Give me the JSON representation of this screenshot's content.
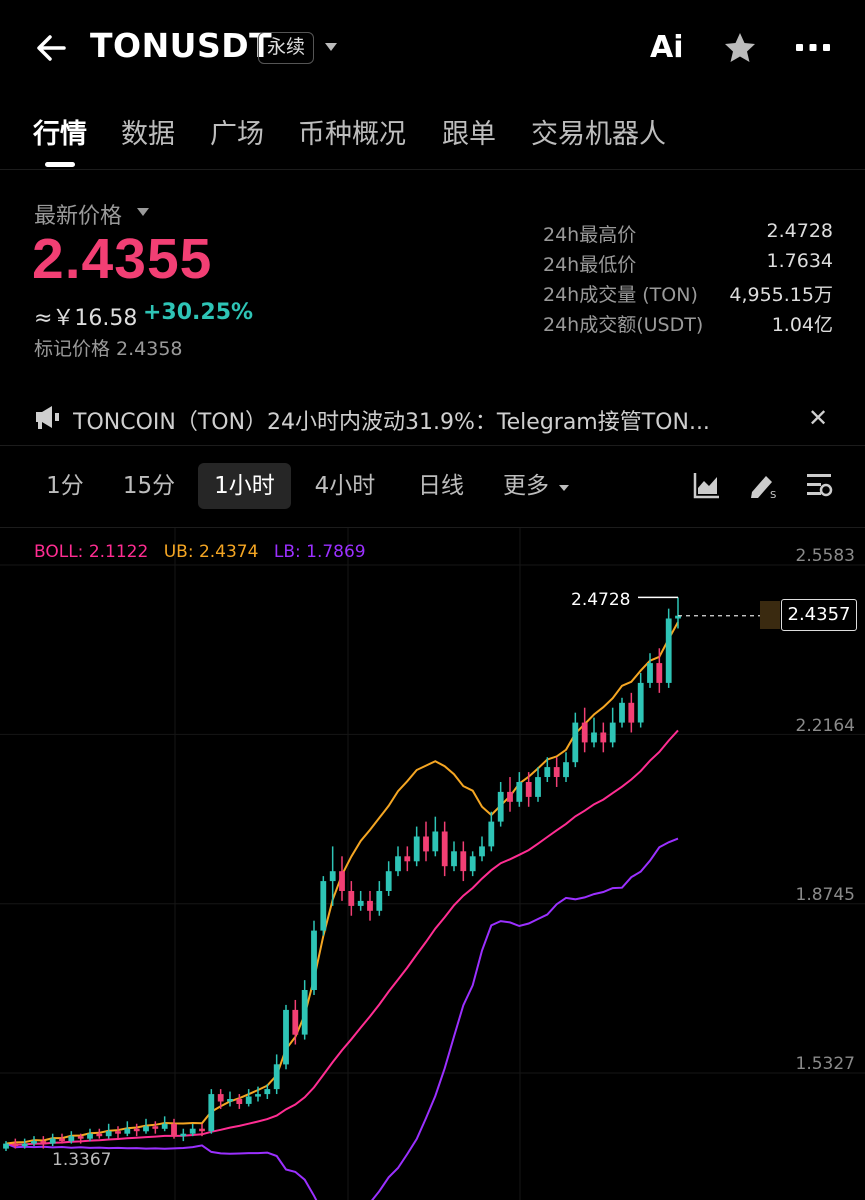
{
  "header": {
    "title": "TONUSDT",
    "badge": "永续",
    "ai_label": "Ai"
  },
  "tabs": [
    "行情",
    "数据",
    "广场",
    "币种概况",
    "跟单",
    "交易机器人"
  ],
  "price": {
    "label": "最新价格",
    "last": "2.4355",
    "cny": "≈￥16.58",
    "change": "+30.25%",
    "mark_price": "标记价格 2.4358"
  },
  "stats": [
    {
      "label": "24h最高价",
      "value": "2.4728"
    },
    {
      "label": "24h最低价",
      "value": "1.7634"
    },
    {
      "label": "24h成交量 (TON)",
      "value": "4,955.15万"
    },
    {
      "label": "24h成交额(USDT)",
      "value": "1.04亿"
    }
  ],
  "news": {
    "text": "TONCOIN（TON）24小时内波动31.9%：Telegram接管TON..."
  },
  "timeframes": [
    "1分",
    "15分",
    "1小时",
    "4小时",
    "日线",
    "更多"
  ],
  "colors": {
    "up": "#2ec4b6",
    "down": "#f23f74",
    "boll_mid": "#ff2d92",
    "boll_ub": "#f5a623",
    "boll_lb": "#9b30ff"
  },
  "chart_data": {
    "type": "candlestick",
    "indicator": {
      "boll": "BOLL: 2.1122",
      "ub": "UB: 2.4374",
      "lb": "LB: 1.7869"
    },
    "y_axis_ticks": [
      "2.5583",
      "2.2164",
      "1.8745",
      "1.5327"
    ],
    "y_tick_values": [
      2.5583,
      2.2164,
      1.8745,
      1.5327
    ],
    "high_marker": "2.4728",
    "last_price_marker": "2.4357",
    "low_marker": "1.3367",
    "candles": [
      [
        1.36,
        1.37,
        1.355,
        1.375
      ],
      [
        1.37,
        1.365,
        1.36,
        1.38
      ],
      [
        1.365,
        1.37,
        1.36,
        1.38
      ],
      [
        1.37,
        1.375,
        1.365,
        1.385
      ],
      [
        1.375,
        1.37,
        1.36,
        1.385
      ],
      [
        1.37,
        1.38,
        1.365,
        1.39
      ],
      [
        1.38,
        1.375,
        1.37,
        1.39
      ],
      [
        1.375,
        1.385,
        1.37,
        1.395
      ],
      [
        1.385,
        1.38,
        1.37,
        1.39
      ],
      [
        1.38,
        1.39,
        1.375,
        1.4
      ],
      [
        1.39,
        1.385,
        1.38,
        1.4
      ],
      [
        1.385,
        1.395,
        1.38,
        1.41
      ],
      [
        1.395,
        1.39,
        1.38,
        1.405
      ],
      [
        1.39,
        1.4,
        1.385,
        1.415
      ],
      [
        1.4,
        1.395,
        1.385,
        1.41
      ],
      [
        1.395,
        1.405,
        1.39,
        1.42
      ],
      [
        1.405,
        1.4,
        1.39,
        1.415
      ],
      [
        1.4,
        1.41,
        1.395,
        1.425
      ],
      [
        1.41,
        1.385,
        1.38,
        1.42
      ],
      [
        1.385,
        1.39,
        1.375,
        1.4
      ],
      [
        1.39,
        1.4,
        1.385,
        1.41
      ],
      [
        1.4,
        1.395,
        1.385,
        1.41
      ],
      [
        1.395,
        1.47,
        1.39,
        1.48
      ],
      [
        1.47,
        1.455,
        1.44,
        1.48
      ],
      [
        1.455,
        1.46,
        1.445,
        1.475
      ],
      [
        1.46,
        1.45,
        1.44,
        1.47
      ],
      [
        1.45,
        1.465,
        1.445,
        1.48
      ],
      [
        1.465,
        1.47,
        1.455,
        1.485
      ],
      [
        1.47,
        1.48,
        1.46,
        1.49
      ],
      [
        1.48,
        1.53,
        1.47,
        1.55
      ],
      [
        1.53,
        1.64,
        1.52,
        1.65
      ],
      [
        1.64,
        1.59,
        1.57,
        1.66
      ],
      [
        1.59,
        1.68,
        1.58,
        1.7
      ],
      [
        1.68,
        1.8,
        1.67,
        1.82
      ],
      [
        1.8,
        1.9,
        1.79,
        1.91
      ],
      [
        1.9,
        1.92,
        1.85,
        1.97
      ],
      [
        1.92,
        1.88,
        1.86,
        1.95
      ],
      [
        1.88,
        1.85,
        1.83,
        1.9
      ],
      [
        1.85,
        1.86,
        1.84,
        1.88
      ],
      [
        1.86,
        1.84,
        1.82,
        1.88
      ],
      [
        1.84,
        1.88,
        1.83,
        1.9
      ],
      [
        1.88,
        1.92,
        1.87,
        1.94
      ],
      [
        1.92,
        1.95,
        1.91,
        1.97
      ],
      [
        1.95,
        1.94,
        1.92,
        1.97
      ],
      [
        1.94,
        1.99,
        1.93,
        2.01
      ],
      [
        1.99,
        1.96,
        1.94,
        2.02
      ],
      [
        1.96,
        2.0,
        1.95,
        2.03
      ],
      [
        2.0,
        1.93,
        1.91,
        2.02
      ],
      [
        1.93,
        1.96,
        1.92,
        1.98
      ],
      [
        1.96,
        1.92,
        1.9,
        1.98
      ],
      [
        1.92,
        1.95,
        1.91,
        1.96
      ],
      [
        1.95,
        1.97,
        1.94,
        1.99
      ],
      [
        1.97,
        2.02,
        1.96,
        2.04
      ],
      [
        2.02,
        2.08,
        2.01,
        2.1
      ],
      [
        2.08,
        2.06,
        2.04,
        2.11
      ],
      [
        2.06,
        2.1,
        2.05,
        2.12
      ],
      [
        2.1,
        2.07,
        2.05,
        2.12
      ],
      [
        2.07,
        2.11,
        2.06,
        2.13
      ],
      [
        2.11,
        2.13,
        2.1,
        2.15
      ],
      [
        2.13,
        2.11,
        2.09,
        2.15
      ],
      [
        2.11,
        2.14,
        2.1,
        2.16
      ],
      [
        2.14,
        2.22,
        2.13,
        2.24
      ],
      [
        2.22,
        2.18,
        2.16,
        2.25
      ],
      [
        2.18,
        2.2,
        2.17,
        2.23
      ],
      [
        2.2,
        2.18,
        2.16,
        2.22
      ],
      [
        2.18,
        2.22,
        2.17,
        2.25
      ],
      [
        2.22,
        2.26,
        2.21,
        2.27
      ],
      [
        2.26,
        2.22,
        2.2,
        2.28
      ],
      [
        2.22,
        2.3,
        2.21,
        2.32
      ],
      [
        2.3,
        2.34,
        2.29,
        2.36
      ],
      [
        2.34,
        2.3,
        2.28,
        2.37
      ],
      [
        2.3,
        2.43,
        2.29,
        2.45
      ],
      [
        2.43,
        2.4357,
        2.41,
        2.4728
      ]
    ]
  }
}
